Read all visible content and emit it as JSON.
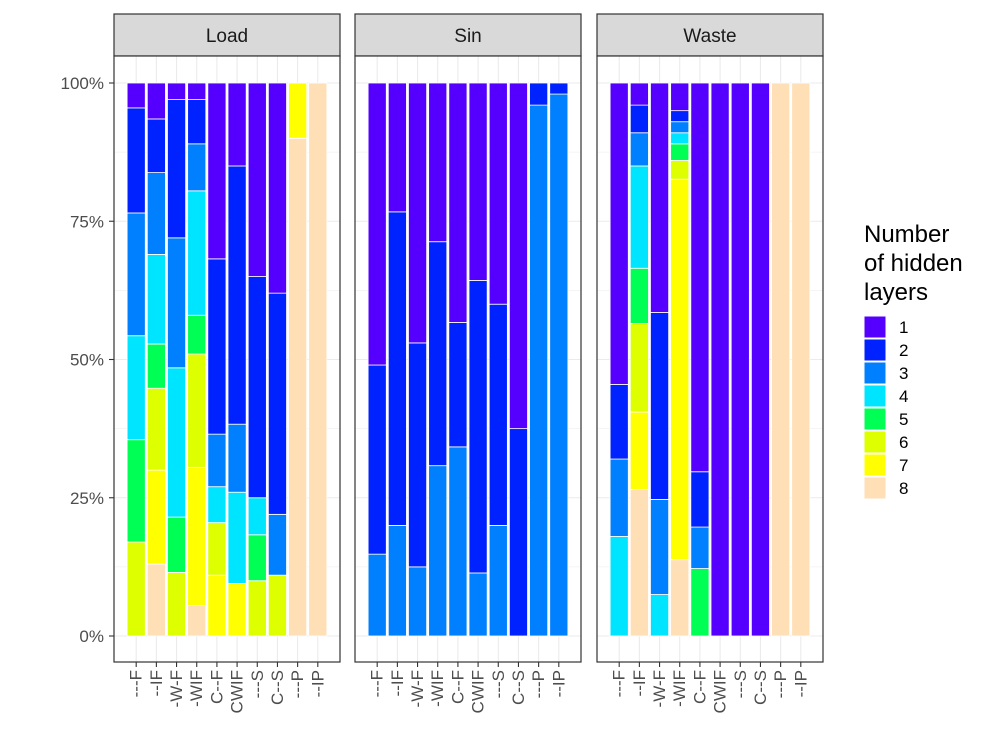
{
  "chart_data": {
    "type": "bar",
    "stacked": "percent",
    "facets": [
      "Load",
      "Sin",
      "Waste"
    ],
    "categories": [
      "---F",
      "--IF",
      "-W-F",
      "-WIF",
      "C--F",
      "CWIF",
      "---S",
      "C--S",
      "---P",
      "--IP"
    ],
    "y_ticks": [
      "0%",
      "25%",
      "50%",
      "75%",
      "100%"
    ],
    "ylim": [
      0,
      100
    ],
    "grid": true,
    "legend": {
      "title_lines": [
        "Number",
        "of hidden",
        "layers"
      ],
      "placement": "right",
      "entries": [
        "1",
        "2",
        "3",
        "4",
        "5",
        "6",
        "7",
        "8"
      ]
    },
    "colors": [
      "#5500ff",
      "#0022ff",
      "#0080ff",
      "#00e5ff",
      "#00ff55",
      "#ddff00",
      "#ffff00",
      "#ffdfb5"
    ],
    "series_order_bottom_to_top": [
      "8",
      "7",
      "6",
      "5",
      "4",
      "3",
      "2",
      "1"
    ],
    "panels": {
      "Load": [
        {
          "8": 0,
          "7": 0,
          "6": 17,
          "5": 18.5,
          "4": 18.8,
          "3": 22.2,
          "2": 19,
          "1": 4.5
        },
        {
          "8": 13,
          "7": 17,
          "6": 14.8,
          "5": 8,
          "4": 16.2,
          "3": 14.8,
          "2": 9.7,
          "1": 6.5
        },
        {
          "8": 0,
          "7": 0,
          "6": 11.5,
          "5": 10,
          "4": 27,
          "3": 23.5,
          "2": 25,
          "1": 3
        },
        {
          "8": 5.5,
          "7": 25,
          "6": 20.5,
          "5": 7,
          "4": 22.5,
          "3": 8.5,
          "2": 8,
          "1": 3
        },
        {
          "8": 0,
          "7": 11,
          "6": 9.5,
          "5": 0,
          "4": 6.5,
          "3": 9.5,
          "2": 31.7,
          "1": 31.8
        },
        {
          "8": 0,
          "7": 9.5,
          "6": 0,
          "5": 0,
          "4": 16.5,
          "3": 12.3,
          "2": 46.7,
          "1": 15
        },
        {
          "8": 0,
          "7": 0,
          "6": 10,
          "5": 8.3,
          "4": 6.7,
          "3": 0,
          "2": 40,
          "1": 35
        },
        {
          "8": 0,
          "7": 0,
          "6": 11,
          "5": 0,
          "4": 0,
          "3": 11,
          "2": 40,
          "1": 38
        },
        {
          "8": 90,
          "7": 10,
          "6": 0,
          "5": 0,
          "4": 0,
          "3": 0,
          "2": 0,
          "1": 0
        },
        {
          "8": 100,
          "7": 0,
          "6": 0,
          "5": 0,
          "4": 0,
          "3": 0,
          "2": 0,
          "1": 0
        }
      ],
      "Sin": [
        {
          "8": 0,
          "7": 0,
          "6": 0,
          "5": 0,
          "4": 0,
          "3": 14.8,
          "2": 34.2,
          "1": 51
        },
        {
          "8": 0,
          "7": 0,
          "6": 0,
          "5": 0,
          "4": 0,
          "3": 20,
          "2": 56.7,
          "1": 23.3
        },
        {
          "8": 0,
          "7": 0,
          "6": 0,
          "5": 0,
          "4": 0,
          "3": 12.5,
          "2": 40.5,
          "1": 47
        },
        {
          "8": 0,
          "7": 0,
          "6": 0,
          "5": 0,
          "4": 0,
          "3": 30.8,
          "2": 40.5,
          "1": 28.7
        },
        {
          "8": 0,
          "7": 0,
          "6": 0,
          "5": 0,
          "4": 0,
          "3": 34.2,
          "2": 22.5,
          "1": 43.3
        },
        {
          "8": 0,
          "7": 0,
          "6": 0,
          "5": 0,
          "4": 0,
          "3": 11.4,
          "2": 52.9,
          "1": 35.7
        },
        {
          "8": 0,
          "7": 0,
          "6": 0,
          "5": 0,
          "4": 0,
          "3": 20,
          "2": 40,
          "1": 40
        },
        {
          "8": 0,
          "7": 0,
          "6": 0,
          "5": 0,
          "4": 0,
          "3": 0,
          "2": 37.5,
          "1": 62.5
        },
        {
          "8": 0,
          "7": 0,
          "6": 0,
          "5": 0,
          "4": 0,
          "3": 96,
          "2": 4,
          "1": 0
        },
        {
          "8": 0,
          "7": 0,
          "6": 0,
          "5": 0,
          "4": 0,
          "3": 98,
          "2": 2,
          "1": 0
        }
      ],
      "Waste": [
        {
          "8": 0,
          "7": 0,
          "6": 0,
          "5": 0,
          "4": 18,
          "3": 14,
          "2": 13.5,
          "1": 54.5
        },
        {
          "8": 26.5,
          "7": 14,
          "6": 16,
          "5": 10,
          "4": 18.5,
          "3": 6,
          "2": 5,
          "1": 4
        },
        {
          "8": 0,
          "7": 0,
          "6": 0,
          "5": 0,
          "4": 7.5,
          "3": 17.2,
          "2": 33.8,
          "1": 41.5
        },
        {
          "8": 13.8,
          "7": 68.8,
          "6": 3.4,
          "5": 3,
          "4": 2,
          "3": 2,
          "2": 2,
          "1": 5
        },
        {
          "8": 0,
          "7": 0,
          "6": 0,
          "5": 12.2,
          "4": 0,
          "3": 7.5,
          "2": 10,
          "1": 70.3
        },
        {
          "8": 0,
          "7": 0,
          "6": 0,
          "5": 0,
          "4": 0,
          "3": 0,
          "2": 0,
          "1": 100
        },
        {
          "8": 0,
          "7": 0,
          "6": 0,
          "5": 0,
          "4": 0,
          "3": 0,
          "2": 0,
          "1": 100
        },
        {
          "8": 0,
          "7": 0,
          "6": 0,
          "5": 0,
          "4": 0,
          "3": 0,
          "2": 0,
          "1": 100
        },
        {
          "8": 100,
          "7": 0,
          "6": 0,
          "5": 0,
          "4": 0,
          "3": 0,
          "2": 0,
          "1": 0
        },
        {
          "8": 100,
          "7": 0,
          "6": 0,
          "5": 0,
          "4": 0,
          "3": 0,
          "2": 0,
          "1": 0
        }
      ]
    }
  }
}
